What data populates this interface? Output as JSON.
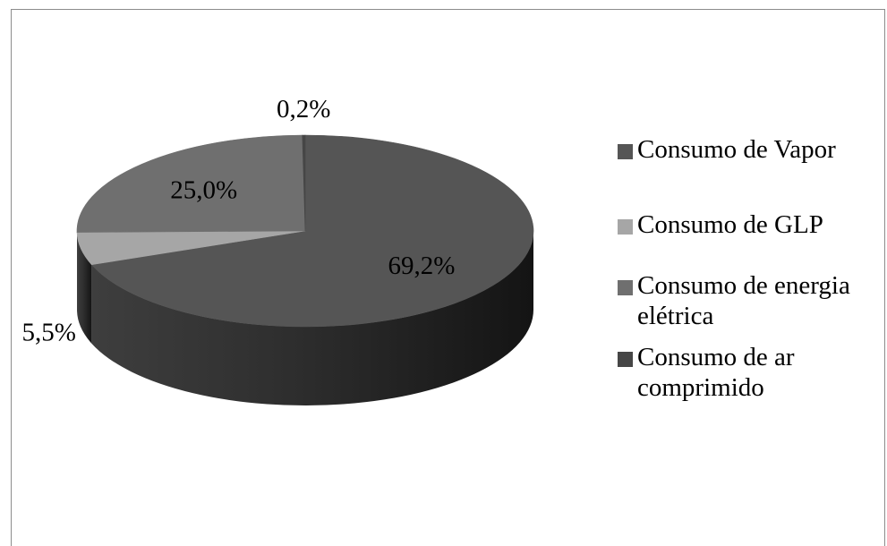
{
  "chart_data": {
    "type": "pie",
    "title": "",
    "categories": [
      "Consumo de Vapor",
      "Consumo de GLP",
      "Consumo de energia elétrica",
      "Consumo de ar comprimido"
    ],
    "values": [
      69.2,
      5.5,
      25.0,
      0.2
    ],
    "value_labels": [
      "69,2%",
      "5,5%",
      "25,0%",
      "0,2%"
    ],
    "colors": [
      "#555555",
      "#a6a6a6",
      "#6f6f6f",
      "#464646"
    ],
    "legend_position": "right",
    "style": "3d-pie"
  },
  "legend": {
    "items": [
      {
        "label": "Consumo de Vapor",
        "color": "#555555"
      },
      {
        "label": "Consumo de GLP",
        "color": "#a6a6a6"
      },
      {
        "label": "Consumo de energia elétrica",
        "color": "#6f6f6f"
      },
      {
        "label": "Consumo de ar comprimido",
        "color": "#464646"
      }
    ]
  }
}
